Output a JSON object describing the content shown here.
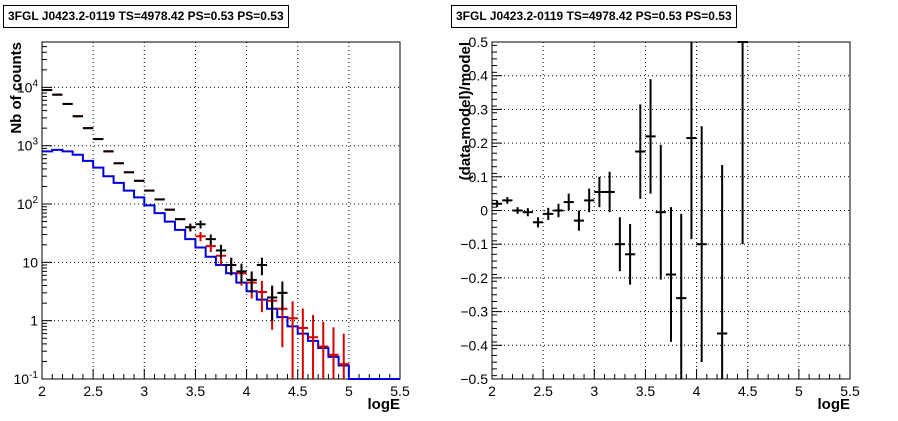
{
  "chart_data": [
    {
      "type": "histogram",
      "title": "3FGL J0423.2-0119 TS=4978.42 PS=0.53 PS=0.53",
      "xlabel": "logE",
      "ylabel": "Nb of counts",
      "xlim": [
        2,
        5.5
      ],
      "ylim": [
        0.1,
        60000
      ],
      "yscale": "log",
      "grid": true,
      "x_ticks": [
        "2",
        "2.5",
        "3",
        "3.5",
        "4",
        "4.5",
        "5",
        "5.5"
      ],
      "y_ticks": [
        {
          "base": "10",
          "exp": "-1"
        },
        {
          "base": "1",
          "exp": ""
        },
        {
          "base": "10",
          "exp": ""
        },
        {
          "base": "10",
          "exp": "2"
        },
        {
          "base": "10",
          "exp": "3"
        },
        {
          "base": "10",
          "exp": "4"
        }
      ],
      "series": [
        {
          "color": "#d40000",
          "x": [
            2.05,
            2.15,
            2.25,
            2.35,
            2.45,
            2.55,
            2.65,
            2.75,
            2.85,
            2.95,
            3.05,
            3.15,
            3.25,
            3.35,
            3.45,
            3.55,
            3.65,
            3.75,
            3.85,
            3.95,
            4.05,
            4.15,
            4.25,
            4.35,
            4.45,
            4.55,
            4.65,
            4.75,
            4.85,
            4.95
          ],
          "y": [
            9000,
            7500,
            5200,
            3200,
            2000,
            1300,
            800,
            500,
            350,
            250,
            170,
            120,
            80,
            55,
            40,
            28,
            19,
            13,
            9,
            6.5,
            4.5,
            3.1,
            2.2,
            1.6,
            1.1,
            0.75,
            0.52,
            0.36,
            0.26,
            0.18
          ],
          "err_lo": [
            0,
            0,
            0,
            0,
            0,
            0,
            0,
            0,
            0,
            0,
            0,
            0,
            0,
            0,
            6,
            5,
            4,
            4,
            3,
            2.5,
            2.1,
            1.7,
            1.5,
            1.25,
            1.0,
            0.75,
            0.52,
            0.36,
            0.26,
            0.18
          ],
          "err_hi": [
            0,
            0,
            0,
            0,
            0,
            0,
            0,
            0,
            0,
            0,
            0,
            0,
            0,
            0,
            6,
            5,
            4,
            4,
            3,
            2.5,
            2.1,
            1.7,
            1.5,
            1.25,
            1.05,
            0.87,
            0.73,
            0.6,
            0.51,
            0.42
          ]
        },
        {
          "color": "#0000dd",
          "edges": [
            2.0,
            2.1,
            2.2,
            2.3,
            2.4,
            2.5,
            2.6,
            2.7,
            2.8,
            2.9,
            3.0,
            3.1,
            3.2,
            3.3,
            3.4,
            3.5,
            3.6,
            3.7,
            3.8,
            3.9,
            4.0,
            4.1,
            4.2,
            4.3,
            4.4,
            4.5,
            4.6,
            4.7,
            4.8,
            4.9,
            5.0,
            5.1,
            5.2,
            5.3,
            5.4,
            5.5
          ],
          "y": [
            800,
            850,
            800,
            700,
            550,
            420,
            300,
            230,
            170,
            130,
            95,
            70,
            50,
            36,
            25,
            18,
            12.5,
            9,
            6.5,
            4.5,
            3.2,
            2.3,
            1.6,
            1.15,
            0.8,
            0.6,
            0.45,
            0.34,
            0.24,
            0.17,
            0.1,
            0.1,
            0.1,
            0.1,
            0.1
          ]
        },
        {
          "color": "#000000",
          "x": [
            2.05,
            2.15,
            2.25,
            2.35,
            2.45,
            2.55,
            2.65,
            2.75,
            2.85,
            2.95,
            3.05,
            3.15,
            3.25,
            3.35,
            3.45,
            3.55,
            3.65,
            3.75,
            3.85,
            3.95,
            4.05,
            4.15,
            4.25,
            4.35
          ],
          "y": [
            9000,
            7500,
            5200,
            3200,
            2000,
            1300,
            800,
            500,
            350,
            250,
            170,
            120,
            80,
            55,
            40,
            45,
            25,
            16,
            9,
            7,
            5,
            9,
            2.5,
            3
          ],
          "err_lo": [
            0,
            0,
            0,
            0,
            0,
            0,
            0,
            0,
            0,
            0,
            0,
            0,
            0,
            0,
            6,
            7,
            5,
            4,
            3,
            2.5,
            2,
            3,
            1.5,
            1.5
          ],
          "err_hi": [
            0,
            0,
            0,
            0,
            0,
            0,
            0,
            0,
            0,
            0,
            0,
            0,
            0,
            0,
            6,
            7,
            5,
            4,
            3,
            2.5,
            2,
            3,
            1.5,
            1.7
          ]
        }
      ]
    },
    {
      "type": "scatter",
      "title": "3FGL J0423.2-0119 TS=4978.42 PS=0.53 PS=0.53",
      "xlabel": "logE",
      "ylabel": "(data-model)/model",
      "xlim": [
        2,
        5.5
      ],
      "ylim": [
        -0.5,
        0.5
      ],
      "grid": true,
      "x_ticks": [
        "2",
        "2.5",
        "3",
        "3.5",
        "4",
        "4.5",
        "5",
        "5.5"
      ],
      "y_ticks": [
        "−0.5",
        "−0.4",
        "−0.3",
        "−0.2",
        "−0.1",
        "0",
        "0.1",
        "0.2",
        "0.3",
        "0.4",
        "0.5"
      ],
      "series": [
        {
          "color": "#000000",
          "x": [
            2.05,
            2.15,
            2.25,
            2.35,
            2.45,
            2.55,
            2.65,
            2.75,
            2.85,
            2.95,
            3.05,
            3.15,
            3.25,
            3.35,
            3.45,
            3.55,
            3.65,
            3.75,
            3.85,
            3.95,
            4.05,
            4.25,
            4.45
          ],
          "y": [
            0.02,
            0.03,
            0.0,
            -0.005,
            -0.035,
            -0.01,
            0.0,
            0.025,
            -0.03,
            0.03,
            0.055,
            0.055,
            -0.1,
            -0.13,
            0.175,
            0.22,
            -0.005,
            -0.19,
            -0.26,
            0.215,
            -0.1,
            -0.365,
            0.5
          ],
          "err": [
            0.01,
            0.01,
            0.01,
            0.012,
            0.015,
            0.018,
            0.02,
            0.025,
            0.03,
            0.035,
            0.045,
            0.06,
            0.08,
            0.09,
            0.14,
            0.17,
            0.2,
            0.2,
            0.25,
            0.3,
            0.35,
            0.5,
            0.6
          ]
        }
      ]
    }
  ]
}
